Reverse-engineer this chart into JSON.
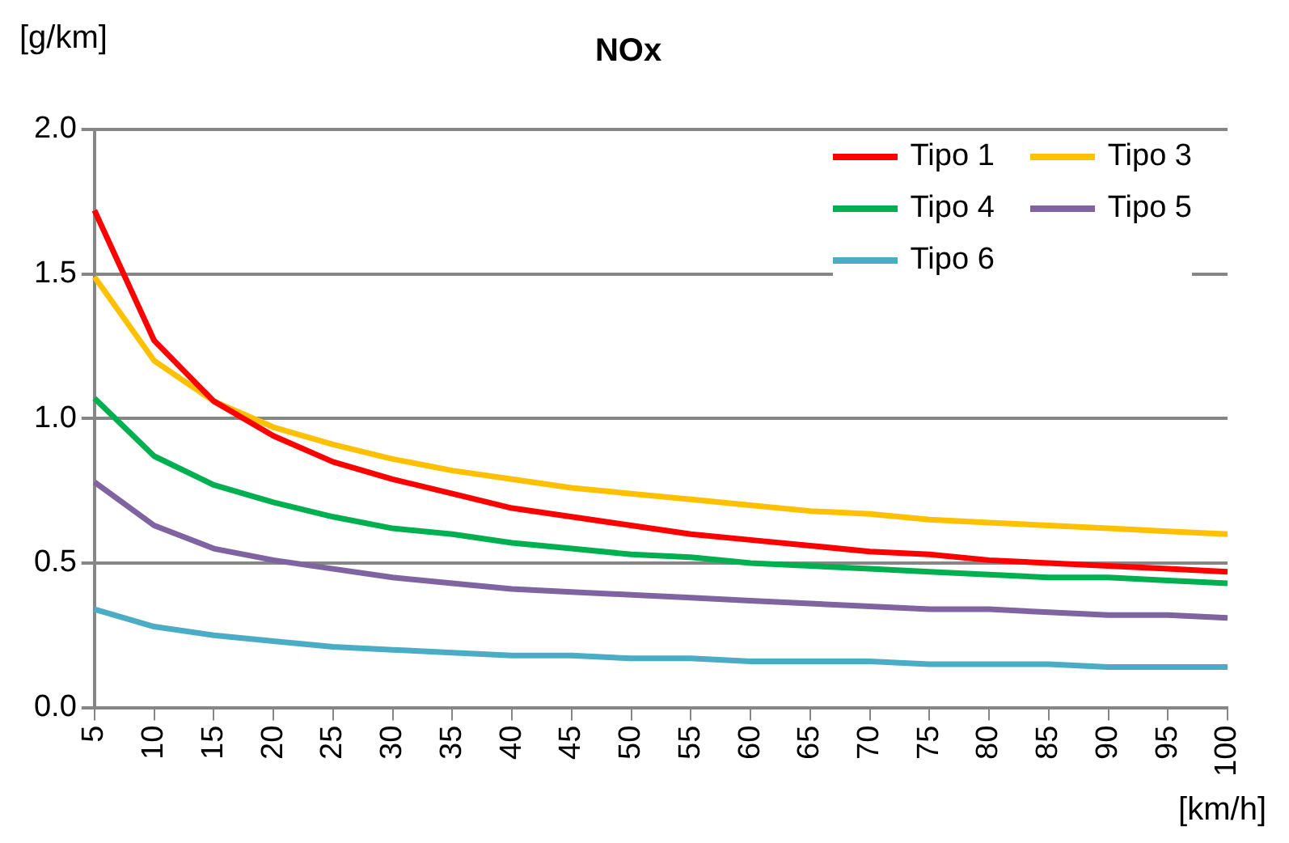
{
  "chart_data": {
    "type": "line",
    "title": "NOx",
    "xlabel": "[km/h]",
    "ylabel": "[g/km]",
    "categories": [
      "5",
      "10",
      "15",
      "20",
      "25",
      "30",
      "35",
      "40",
      "45",
      "50",
      "55",
      "60",
      "65",
      "70",
      "75",
      "80",
      "85",
      "90",
      "95",
      "100"
    ],
    "series": [
      {
        "name": "Tipo 1",
        "color": "#ff0000",
        "values": [
          1.72,
          1.27,
          1.06,
          0.94,
          0.85,
          0.79,
          0.74,
          0.69,
          0.66,
          0.63,
          0.6,
          0.58,
          0.56,
          0.54,
          0.53,
          0.51,
          0.5,
          0.49,
          0.48,
          0.47
        ]
      },
      {
        "name": "Tipo 3",
        "color": "#ffc000",
        "values": [
          1.49,
          1.2,
          1.06,
          0.97,
          0.91,
          0.86,
          0.82,
          0.79,
          0.76,
          0.74,
          0.72,
          0.7,
          0.68,
          0.67,
          0.65,
          0.64,
          0.63,
          0.62,
          0.61,
          0.6
        ]
      },
      {
        "name": "Tipo 4",
        "color": "#00b050",
        "values": [
          1.07,
          0.87,
          0.77,
          0.71,
          0.66,
          0.62,
          0.6,
          0.57,
          0.55,
          0.53,
          0.52,
          0.5,
          0.49,
          0.48,
          0.47,
          0.46,
          0.45,
          0.45,
          0.44,
          0.43
        ]
      },
      {
        "name": "Tipo 5",
        "color": "#8064a2",
        "values": [
          0.78,
          0.63,
          0.55,
          0.51,
          0.48,
          0.45,
          0.43,
          0.41,
          0.4,
          0.39,
          0.38,
          0.37,
          0.36,
          0.35,
          0.34,
          0.34,
          0.33,
          0.32,
          0.32,
          0.31
        ]
      },
      {
        "name": "Tipo 6",
        "color": "#4bacc6",
        "values": [
          0.34,
          0.28,
          0.25,
          0.23,
          0.21,
          0.2,
          0.19,
          0.18,
          0.18,
          0.17,
          0.17,
          0.16,
          0.16,
          0.16,
          0.15,
          0.15,
          0.15,
          0.14,
          0.14,
          0.14
        ]
      }
    ],
    "ylim": [
      0,
      2
    ],
    "yticks": [
      {
        "value": 0,
        "label": "0.0"
      },
      {
        "value": 0.5,
        "label": "0.5"
      },
      {
        "value": 1,
        "label": "1.0"
      },
      {
        "value": 1.5,
        "label": "1.5"
      },
      {
        "value": 2,
        "label": "2.0"
      }
    ],
    "grid": "y",
    "legend": "top right",
    "marker": "none",
    "line_style": "solid"
  }
}
